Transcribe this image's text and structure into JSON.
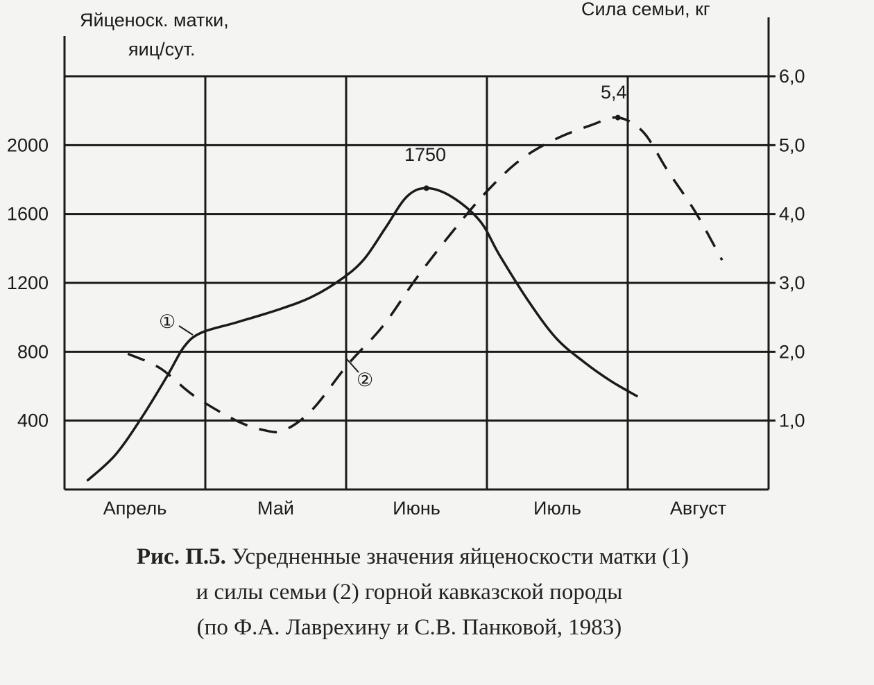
{
  "chart_data": {
    "type": "line",
    "caption": {
      "label": "Рис. П.5.",
      "line1": "Усредненные значения яйценоскости матки (1)",
      "line2": "и силы семьи (2) горной кавказской породы",
      "line3": "(по Ф.А. Лаврехину и С.В. Панковой, 1983)"
    },
    "ylabel_left_line1": "Яйценоск. матки,",
    "ylabel_left_line2": "яиц/сут.",
    "ylabel_right": "Сила семьи, кг",
    "categories": [
      "Апрель",
      "Май",
      "Июнь",
      "Июль",
      "Август"
    ],
    "ylim_left": [
      0,
      2400
    ],
    "ylim_right": [
      0,
      6.0
    ],
    "yticks_left": [
      "400",
      "800",
      "1200",
      "1600",
      "2000"
    ],
    "yticks_right": [
      "1,0",
      "2,0",
      "3,0",
      "4,0",
      "5,0",
      "6,0"
    ],
    "grid": true,
    "series": [
      {
        "name": "1",
        "axis": "left",
        "style": "solid",
        "x": [
          0.16,
          0.36,
          0.55,
          0.73,
          0.85,
          0.97,
          1.22,
          1.52,
          1.76,
          1.98,
          2.13,
          2.28,
          2.43,
          2.57,
          2.75,
          2.95,
          3.09,
          3.29,
          3.49,
          3.69,
          3.88,
          4.07
        ],
        "y": [
          50,
          200,
          420,
          660,
          830,
          910,
          970,
          1045,
          1120,
          1230,
          1340,
          1520,
          1700,
          1750,
          1700,
          1560,
          1360,
          1100,
          880,
          740,
          630,
          540
        ]
      },
      {
        "name": "2",
        "axis": "right",
        "style": "dashed",
        "x": [
          0.45,
          0.68,
          0.92,
          1.22,
          1.42,
          1.56,
          1.76,
          2.01,
          2.26,
          2.5,
          2.75,
          3.0,
          3.24,
          3.49,
          3.74,
          3.93,
          4.11,
          4.28,
          4.48,
          4.67
        ],
        "y": [
          1.97,
          1.76,
          1.36,
          1.0,
          0.86,
          0.86,
          1.16,
          1.81,
          2.37,
          3.07,
          3.73,
          4.33,
          4.79,
          5.09,
          5.29,
          5.4,
          5.19,
          4.64,
          4.03,
          3.33
        ]
      }
    ],
    "annotations": [
      {
        "text": "1750",
        "series": "1",
        "x": 2.57,
        "y": 1750
      },
      {
        "text": "5,4",
        "series": "2",
        "x": 3.93,
        "y": 5.4
      }
    ],
    "series_markers": [
      "①",
      "②"
    ],
    "colors": {
      "ink": "#1a1a1a",
      "paper": "#f4f4f2"
    }
  }
}
